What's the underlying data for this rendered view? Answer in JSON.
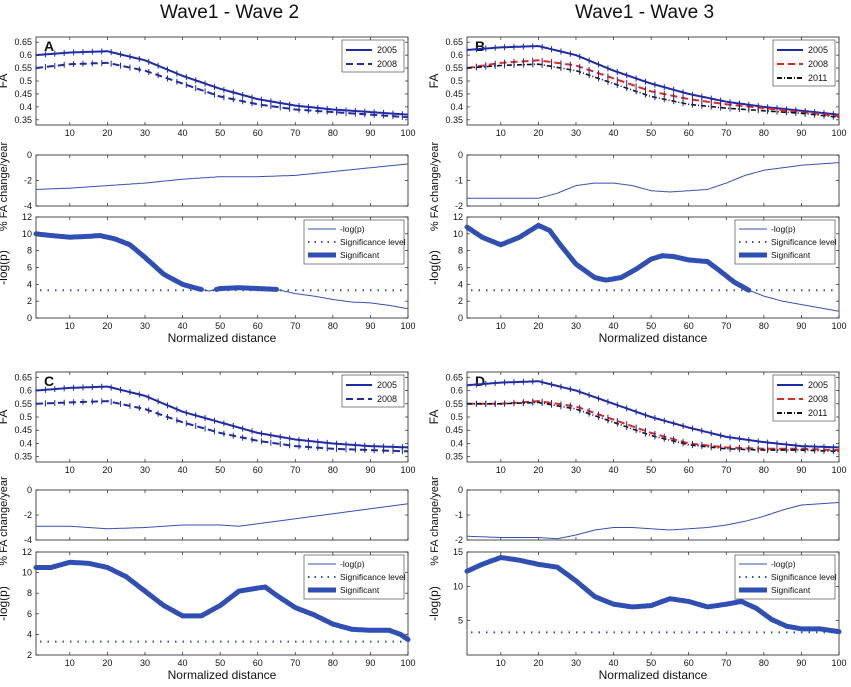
{
  "titles": {
    "left": "Wave1 - Wave 2",
    "right": "Wave1 - Wave 3"
  },
  "colors": {
    "y2005": "#1f2aa6",
    "y2008": "#e0281e",
    "y2011": "#111111",
    "sig": "#2f4fb5",
    "line": "#3550b0"
  },
  "chart_data": [
    {
      "panel": "A",
      "type": "line",
      "fa": {
        "title": "",
        "xlabel": "",
        "ylabel": "FA",
        "xlim": [
          1,
          100
        ],
        "ylim": [
          0.33,
          0.67
        ],
        "yticks": [
          0.35,
          0.4,
          0.45,
          0.5,
          0.55,
          0.6,
          0.65
        ],
        "xticks": [
          10,
          20,
          30,
          40,
          50,
          60,
          70,
          80,
          90,
          100
        ],
        "legend": [
          "2005",
          "2008"
        ],
        "x": [
          1,
          10,
          20,
          30,
          40,
          50,
          60,
          70,
          80,
          90,
          100
        ],
        "series": [
          {
            "name": "2005",
            "values": [
              0.6,
              0.61,
              0.615,
              0.58,
              0.52,
              0.47,
              0.43,
              0.405,
              0.39,
              0.38,
              0.37
            ]
          },
          {
            "name": "2008",
            "values": [
              0.55,
              0.565,
              0.57,
              0.54,
              0.49,
              0.44,
              0.41,
              0.39,
              0.38,
              0.37,
              0.36
            ]
          }
        ]
      },
      "change": {
        "ylabel": "% FA change/year",
        "xlim": [
          1,
          100
        ],
        "ylim": [
          -4,
          0
        ],
        "yticks": [
          -4,
          -2,
          0
        ],
        "xticks": [
          10,
          20,
          30,
          40,
          50,
          60,
          70,
          80,
          90,
          100
        ],
        "x": [
          1,
          10,
          20,
          30,
          40,
          50,
          60,
          70,
          80,
          90,
          100
        ],
        "values": [
          -2.7,
          -2.6,
          -2.4,
          -2.2,
          -1.9,
          -1.7,
          -1.7,
          -1.6,
          -1.3,
          -1.0,
          -0.7
        ]
      },
      "logp": {
        "ylabel": "-log(p)",
        "xlabel": "Normalized distance",
        "xlim": [
          1,
          100
        ],
        "ylim": [
          0,
          12
        ],
        "yticks": [
          0,
          2,
          4,
          6,
          8,
          10,
          12
        ],
        "xticks": [
          10,
          20,
          30,
          40,
          50,
          60,
          70,
          80,
          90,
          100
        ],
        "legend": [
          "-log(p)",
          "Significance level",
          "Significant"
        ],
        "significance_level": 3.3,
        "x": [
          1,
          5,
          10,
          15,
          18,
          22,
          26,
          30,
          35,
          40,
          44,
          47,
          50,
          55,
          60,
          65,
          70,
          75,
          80,
          85,
          90,
          95,
          100
        ],
        "values": [
          10,
          9.8,
          9.6,
          9.7,
          9.8,
          9.4,
          8.7,
          7.2,
          5.2,
          4.0,
          3.5,
          3.2,
          3.5,
          3.6,
          3.5,
          3.4,
          2.9,
          2.6,
          2.2,
          1.9,
          1.8,
          1.5,
          1.1
        ],
        "significant_ranges": [
          [
            1,
            45
          ],
          [
            49,
            65
          ]
        ]
      }
    },
    {
      "panel": "B",
      "type": "line",
      "fa": {
        "ylabel": "FA",
        "xlim": [
          1,
          100
        ],
        "ylim": [
          0.33,
          0.67
        ],
        "yticks": [
          0.35,
          0.4,
          0.45,
          0.5,
          0.55,
          0.6,
          0.65
        ],
        "xticks": [
          10,
          20,
          30,
          40,
          50,
          60,
          70,
          80,
          90,
          100
        ],
        "legend": [
          "2005",
          "2008",
          "2011"
        ],
        "x": [
          1,
          10,
          20,
          30,
          40,
          50,
          60,
          70,
          80,
          90,
          100
        ],
        "series": [
          {
            "name": "2005",
            "values": [
              0.62,
              0.63,
              0.635,
              0.6,
              0.54,
              0.49,
              0.45,
              0.42,
              0.4,
              0.385,
              0.37
            ]
          },
          {
            "name": "2008",
            "values": [
              0.55,
              0.57,
              0.58,
              0.56,
              0.51,
              0.46,
              0.43,
              0.41,
              0.395,
              0.38,
              0.365
            ]
          },
          {
            "name": "2011",
            "values": [
              0.55,
              0.56,
              0.565,
              0.54,
              0.49,
              0.44,
              0.41,
              0.395,
              0.385,
              0.375,
              0.36
            ]
          }
        ]
      },
      "change": {
        "ylabel": "% FA change/year",
        "xlim": [
          1,
          100
        ],
        "ylim": [
          -2,
          0
        ],
        "yticks": [
          -2,
          -1,
          0
        ],
        "xticks": [
          10,
          20,
          30,
          40,
          50,
          60,
          70,
          80,
          90,
          100
        ],
        "x": [
          1,
          10,
          20,
          25,
          30,
          35,
          40,
          45,
          50,
          55,
          60,
          65,
          70,
          75,
          80,
          90,
          100
        ],
        "values": [
          -1.7,
          -1.7,
          -1.7,
          -1.5,
          -1.2,
          -1.1,
          -1.1,
          -1.2,
          -1.4,
          -1.45,
          -1.4,
          -1.35,
          -1.1,
          -0.8,
          -0.6,
          -0.4,
          -0.3
        ]
      },
      "logp": {
        "ylabel": "-log(p)",
        "xlabel": "Normalized distance",
        "xlim": [
          1,
          100
        ],
        "ylim": [
          0,
          12
        ],
        "yticks": [
          0,
          2,
          4,
          6,
          8,
          10,
          12
        ],
        "xticks": [
          10,
          20,
          30,
          40,
          50,
          60,
          70,
          80,
          90,
          100
        ],
        "legend": [
          "-log(p)",
          "Significance level",
          "Significant"
        ],
        "significance_level": 3.3,
        "x": [
          1,
          5,
          10,
          15,
          20,
          23,
          26,
          30,
          35,
          38,
          42,
          46,
          50,
          53,
          56,
          60,
          65,
          68,
          72,
          76,
          80,
          85,
          90,
          95,
          100
        ],
        "values": [
          10.8,
          9.6,
          8.7,
          9.6,
          11,
          10.4,
          8.6,
          6.4,
          4.8,
          4.5,
          4.8,
          5.8,
          7.0,
          7.4,
          7.3,
          6.9,
          6.7,
          5.7,
          4.3,
          3.3,
          2.6,
          2.0,
          1.6,
          1.2,
          0.8
        ],
        "significant_ranges": [
          [
            1,
            76
          ]
        ]
      }
    },
    {
      "panel": "C",
      "type": "line",
      "fa": {
        "ylabel": "FA",
        "xlim": [
          1,
          100
        ],
        "ylim": [
          0.33,
          0.67
        ],
        "yticks": [
          0.35,
          0.4,
          0.45,
          0.5,
          0.55,
          0.6,
          0.65
        ],
        "xticks": [
          10,
          20,
          30,
          40,
          50,
          60,
          70,
          80,
          90,
          100
        ],
        "legend": [
          "2005",
          "2008"
        ],
        "x": [
          1,
          10,
          20,
          30,
          40,
          50,
          60,
          70,
          80,
          90,
          100
        ],
        "series": [
          {
            "name": "2005",
            "values": [
              0.6,
              0.61,
              0.615,
              0.58,
              0.52,
              0.48,
              0.44,
              0.415,
              0.4,
              0.39,
              0.385
            ]
          },
          {
            "name": "2008",
            "values": [
              0.55,
              0.555,
              0.56,
              0.53,
              0.48,
              0.44,
              0.41,
              0.39,
              0.38,
              0.375,
              0.37
            ]
          }
        ]
      },
      "change": {
        "ylabel": "% FA change/year",
        "xlim": [
          1,
          100
        ],
        "ylim": [
          -4,
          0
        ],
        "yticks": [
          -4,
          -2,
          0
        ],
        "xticks": [
          10,
          20,
          30,
          40,
          50,
          60,
          70,
          80,
          90,
          100
        ],
        "x": [
          1,
          10,
          20,
          30,
          40,
          50,
          55,
          60,
          70,
          80,
          90,
          100
        ],
        "values": [
          -2.9,
          -2.9,
          -3.1,
          -3.0,
          -2.8,
          -2.8,
          -2.9,
          -2.7,
          -2.3,
          -1.9,
          -1.5,
          -1.1
        ]
      },
      "logp": {
        "ylabel": "-log(p)",
        "xlabel": "Normalized distance",
        "xlim": [
          1,
          100
        ],
        "ylim": [
          2,
          12
        ],
        "yticks": [
          2,
          4,
          6,
          8,
          10,
          12
        ],
        "xticks": [
          10,
          20,
          30,
          40,
          50,
          60,
          70,
          80,
          90,
          100
        ],
        "legend": [
          "-log(p)",
          "Significance level",
          "Significant"
        ],
        "significance_level": 3.3,
        "x": [
          1,
          5,
          10,
          15,
          20,
          25,
          30,
          35,
          40,
          45,
          50,
          55,
          60,
          62,
          65,
          70,
          75,
          80,
          85,
          90,
          95,
          98,
          100
        ],
        "values": [
          10.5,
          10.5,
          11,
          10.9,
          10.5,
          9.6,
          8.2,
          6.8,
          5.8,
          5.8,
          6.8,
          8.2,
          8.5,
          8.6,
          7.8,
          6.6,
          5.9,
          5.0,
          4.5,
          4.4,
          4.4,
          4.0,
          3.5
        ],
        "significant_ranges": [
          [
            1,
            100
          ]
        ]
      }
    },
    {
      "panel": "D",
      "type": "line",
      "fa": {
        "ylabel": "FA",
        "xlim": [
          1,
          100
        ],
        "ylim": [
          0.33,
          0.67
        ],
        "yticks": [
          0.35,
          0.4,
          0.45,
          0.5,
          0.55,
          0.6,
          0.65
        ],
        "xticks": [
          10,
          20,
          30,
          40,
          50,
          60,
          70,
          80,
          90,
          100
        ],
        "legend": [
          "2005",
          "2008",
          "2011"
        ],
        "x": [
          1,
          10,
          20,
          30,
          40,
          50,
          60,
          70,
          80,
          90,
          100
        ],
        "series": [
          {
            "name": "2005",
            "values": [
              0.62,
              0.63,
              0.635,
              0.6,
              0.55,
              0.5,
              0.46,
              0.425,
              0.405,
              0.39,
              0.385
            ]
          },
          {
            "name": "2008",
            "values": [
              0.55,
              0.55,
              0.56,
              0.54,
              0.49,
              0.44,
              0.4,
              0.385,
              0.38,
              0.38,
              0.375
            ]
          },
          {
            "name": "2011",
            "values": [
              0.55,
              0.55,
              0.555,
              0.53,
              0.48,
              0.43,
              0.395,
              0.38,
              0.375,
              0.375,
              0.37
            ]
          }
        ]
      },
      "change": {
        "ylabel": "% FA change/year",
        "xlim": [
          1,
          100
        ],
        "ylim": [
          -2,
          0
        ],
        "yticks": [
          -2,
          -1,
          0
        ],
        "xticks": [
          10,
          20,
          30,
          40,
          50,
          60,
          70,
          80,
          90,
          100
        ],
        "x": [
          1,
          10,
          20,
          25,
          30,
          35,
          40,
          45,
          50,
          55,
          60,
          65,
          70,
          75,
          80,
          85,
          90,
          100
        ],
        "values": [
          -1.85,
          -1.9,
          -1.9,
          -1.95,
          -1.8,
          -1.6,
          -1.5,
          -1.5,
          -1.55,
          -1.6,
          -1.55,
          -1.5,
          -1.4,
          -1.25,
          -1.05,
          -0.8,
          -0.6,
          -0.5
        ],
        "significant_ranges": []
      },
      "logp": {
        "ylabel": "-log(p)",
        "xlabel": "Normalized distance",
        "xlim": [
          1,
          100
        ],
        "ylim": [
          0,
          15
        ],
        "yticks": [
          5,
          10,
          15
        ],
        "xticks": [
          10,
          20,
          30,
          40,
          50,
          60,
          70,
          80,
          90,
          100
        ],
        "legend": [
          "-log(p)",
          "Significance level",
          "Significant"
        ],
        "significance_level": 3.3,
        "x": [
          1,
          5,
          10,
          15,
          20,
          25,
          30,
          35,
          40,
          45,
          50,
          55,
          60,
          65,
          70,
          74,
          78,
          82,
          86,
          90,
          95,
          100
        ],
        "values": [
          12.2,
          13.2,
          14.2,
          13.8,
          13.2,
          12.8,
          10.8,
          8.5,
          7.4,
          7.0,
          7.2,
          8.2,
          7.8,
          7.0,
          7.4,
          7.8,
          6.8,
          5.2,
          4.2,
          3.8,
          3.8,
          3.4
        ],
        "significant_ranges": [
          [
            1,
            100
          ]
        ]
      }
    }
  ]
}
